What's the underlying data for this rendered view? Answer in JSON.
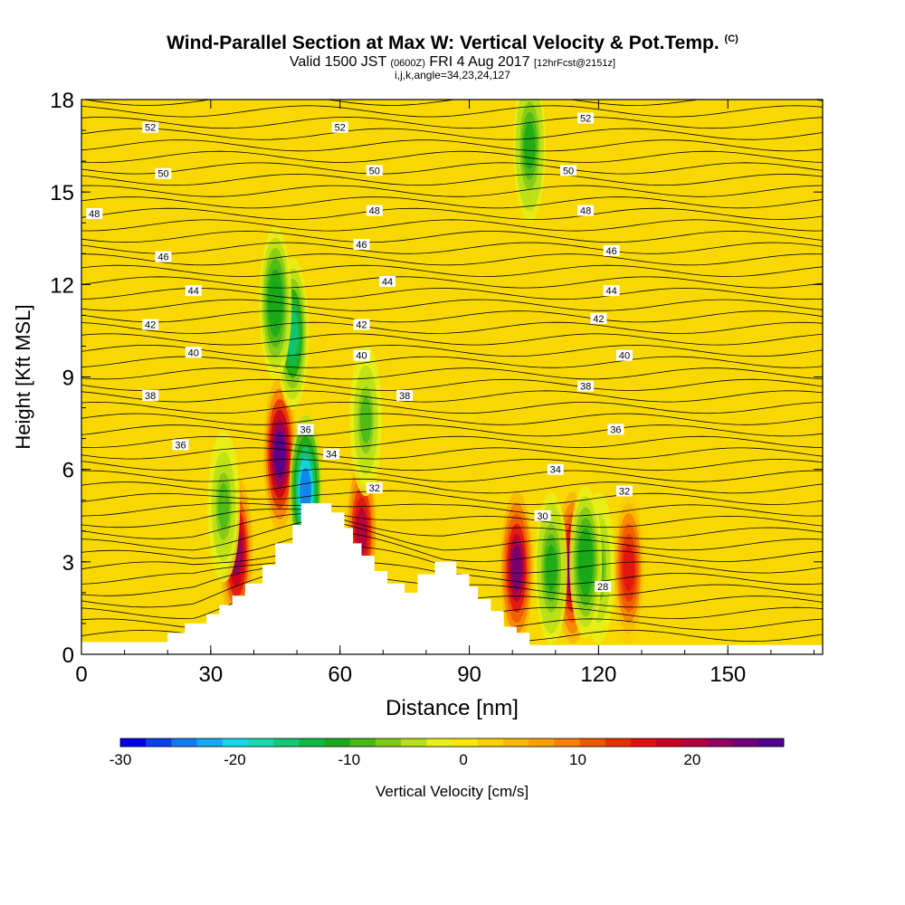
{
  "title": "Wind-Parallel Section at Max W: Vertical Velocity & Pot.Temp.",
  "title_mark": "(C)",
  "subtitle_main": "Valid 1500 JST",
  "subtitle_utc": "(0600Z)",
  "subtitle_date": "FRI 4 Aug 2017",
  "subtitle_fcst": "[12hrFcst@2151z]",
  "subtitle2": "i,j,k,angle=34,23,24,127",
  "chart_data": {
    "type": "heatmap",
    "xlabel": "Distance [nm]",
    "ylabel": "Height [Kft MSL]",
    "xlim": [
      0,
      172
    ],
    "ylim": [
      0,
      18
    ],
    "x_ticks": [
      "0",
      "30",
      "60",
      "90",
      "120",
      "150"
    ],
    "y_ticks": [
      "0",
      "3",
      "6",
      "9",
      "12",
      "15",
      "18"
    ],
    "colorbar_label": "Vertical Velocity [cm/s]",
    "colorbar_ticks": [
      "-30",
      "-20",
      "-10",
      "0",
      "10",
      "20"
    ],
    "colorbar_range": [
      -30,
      28
    ],
    "colorbar_colors": [
      "#0000e8",
      "#0a40f0",
      "#1478f0",
      "#14a8f0",
      "#14d8e8",
      "#14d8b0",
      "#10c878",
      "#10b848",
      "#18a818",
      "#48b818",
      "#80c818",
      "#b8e018",
      "#e8f018",
      "#f8e800",
      "#f8d000",
      "#f8b800",
      "#f8a000",
      "#f88000",
      "#f05800",
      "#e83000",
      "#e01010",
      "#c80020",
      "#b00040",
      "#900060",
      "#700078",
      "#500090"
    ],
    "terrain": [
      [
        0,
        0.4
      ],
      [
        20,
        0.4
      ],
      [
        20,
        0.7
      ],
      [
        24,
        0.7
      ],
      [
        24,
        1.0
      ],
      [
        29,
        1.0
      ],
      [
        29,
        1.3
      ],
      [
        32,
        1.3
      ],
      [
        32,
        1.6
      ],
      [
        35,
        1.6
      ],
      [
        35,
        1.9
      ],
      [
        38,
        1.9
      ],
      [
        38,
        2.3
      ],
      [
        42,
        2.3
      ],
      [
        42,
        2.9
      ],
      [
        45,
        2.9
      ],
      [
        45,
        3.6
      ],
      [
        49,
        3.6
      ],
      [
        49,
        4.2
      ],
      [
        51,
        4.2
      ],
      [
        51,
        4.9
      ],
      [
        58,
        4.9
      ],
      [
        58,
        4.6
      ],
      [
        61,
        4.6
      ],
      [
        61,
        4.1
      ],
      [
        63,
        4.1
      ],
      [
        63,
        3.6
      ],
      [
        65,
        3.6
      ],
      [
        65,
        3.2
      ],
      [
        68,
        3.2
      ],
      [
        68,
        2.7
      ],
      [
        71,
        2.7
      ],
      [
        71,
        2.3
      ],
      [
        75,
        2.3
      ],
      [
        75,
        2.0
      ],
      [
        78,
        2.0
      ],
      [
        78,
        2.6
      ],
      [
        82,
        2.6
      ],
      [
        82,
        3.0
      ],
      [
        87,
        3.0
      ],
      [
        87,
        2.6
      ],
      [
        90,
        2.6
      ],
      [
        90,
        2.2
      ],
      [
        92,
        2.2
      ],
      [
        92,
        1.8
      ],
      [
        95,
        1.8
      ],
      [
        95,
        1.4
      ],
      [
        98,
        1.4
      ],
      [
        98,
        0.9
      ],
      [
        101,
        0.9
      ],
      [
        101,
        0.7
      ],
      [
        104,
        0.7
      ],
      [
        104,
        0.3
      ],
      [
        172,
        0.3
      ]
    ],
    "velocity_features": [
      {
        "x": 46,
        "y": 6.5,
        "value": 26
      },
      {
        "x": 36,
        "y": 3.3,
        "value": 22
      },
      {
        "x": 101,
        "y": 2.8,
        "value": 24
      },
      {
        "x": 114,
        "y": 2.8,
        "value": 24
      },
      {
        "x": 127,
        "y": 2.8,
        "value": 16
      },
      {
        "x": 65,
        "y": 4.0,
        "value": 20
      },
      {
        "x": 52,
        "y": 5.3,
        "value": -24
      },
      {
        "x": 49,
        "y": 10.4,
        "value": -15
      },
      {
        "x": 45,
        "y": 11.4,
        "value": -12
      },
      {
        "x": 66,
        "y": 7.6,
        "value": -8
      },
      {
        "x": 109,
        "y": 2.8,
        "value": -10
      },
      {
        "x": 120,
        "y": 2.8,
        "value": -8
      },
      {
        "x": 33,
        "y": 4.8,
        "value": -8
      },
      {
        "x": 104,
        "y": 16.5,
        "value": -10
      },
      {
        "x": 117,
        "y": 3.0,
        "value": -12
      }
    ],
    "isentrope_labels": [
      {
        "text": "52",
        "x": 16,
        "y": 17.1
      },
      {
        "text": "52",
        "x": 60,
        "y": 17.1
      },
      {
        "text": "52",
        "x": 117,
        "y": 17.4
      },
      {
        "text": "50",
        "x": 19,
        "y": 15.6
      },
      {
        "text": "50",
        "x": 68,
        "y": 15.7
      },
      {
        "text": "50",
        "x": 113,
        "y": 15.7
      },
      {
        "text": "48",
        "x": 3,
        "y": 14.3
      },
      {
        "text": "48",
        "x": 68,
        "y": 14.4
      },
      {
        "text": "48",
        "x": 117,
        "y": 14.4
      },
      {
        "text": "46",
        "x": 19,
        "y": 12.9
      },
      {
        "text": "46",
        "x": 65,
        "y": 13.3
      },
      {
        "text": "46",
        "x": 123,
        "y": 13.1
      },
      {
        "text": "44",
        "x": 26,
        "y": 11.8
      },
      {
        "text": "44",
        "x": 71,
        "y": 12.1
      },
      {
        "text": "44",
        "x": 123,
        "y": 11.8
      },
      {
        "text": "42",
        "x": 16,
        "y": 10.7
      },
      {
        "text": "42",
        "x": 65,
        "y": 10.7
      },
      {
        "text": "42",
        "x": 120,
        "y": 10.9
      },
      {
        "text": "40",
        "x": 26,
        "y": 9.8
      },
      {
        "text": "40",
        "x": 65,
        "y": 9.7
      },
      {
        "text": "40",
        "x": 126,
        "y": 9.7
      },
      {
        "text": "38",
        "x": 16,
        "y": 8.4
      },
      {
        "text": "38",
        "x": 75,
        "y": 8.4
      },
      {
        "text": "38",
        "x": 117,
        "y": 8.7
      },
      {
        "text": "36",
        "x": 23,
        "y": 6.8
      },
      {
        "text": "36",
        "x": 52,
        "y": 7.3
      },
      {
        "text": "36",
        "x": 124,
        "y": 7.3
      },
      {
        "text": "34",
        "x": 58,
        "y": 6.5
      },
      {
        "text": "34",
        "x": 110,
        "y": 6.0
      },
      {
        "text": "32",
        "x": 68,
        "y": 5.4
      },
      {
        "text": "32",
        "x": 126,
        "y": 5.3
      },
      {
        "text": "30",
        "x": 107,
        "y": 4.5
      },
      {
        "text": "28",
        "x": 121,
        "y": 2.2
      }
    ]
  }
}
